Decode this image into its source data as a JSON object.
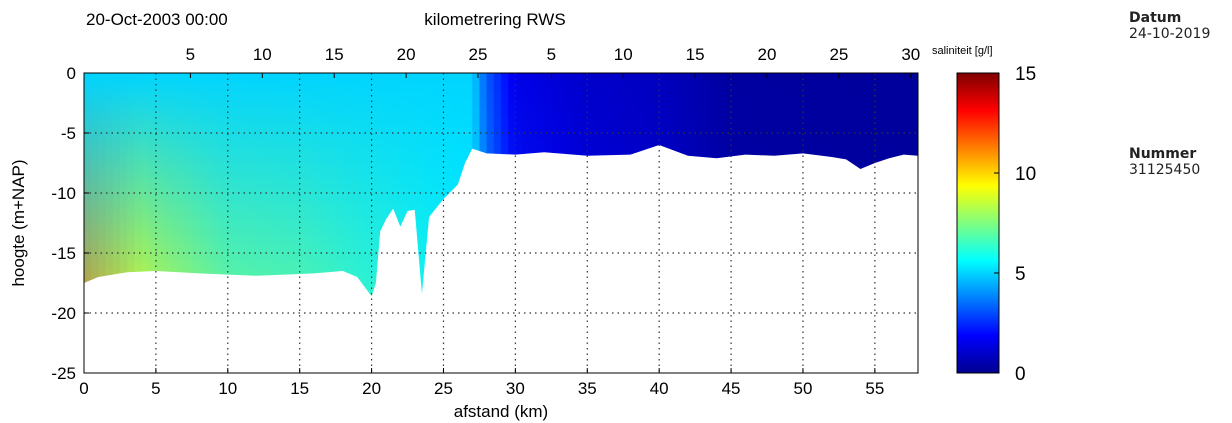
{
  "meta": {
    "datum_label": "Datum",
    "datum_value": "24-10-2019",
    "nummer_label": "Nummer",
    "nummer_value": "31125450"
  },
  "chart_data": {
    "type": "heatmap",
    "title_left": "20-Oct-2003 00:00",
    "title_center": "kilometrering RWS",
    "xlabel": "afstand (km)",
    "ylabel": "hoogte (m+NAP)",
    "colorbar_label": "saliniteit [g/l]",
    "xlim": [
      0,
      58
    ],
    "ylim": [
      -25,
      0
    ],
    "clim": [
      0,
      15
    ],
    "colormap": "jet",
    "grid": true,
    "x_ticks": [
      0,
      5,
      10,
      15,
      20,
      25,
      30,
      35,
      40,
      45,
      50,
      55
    ],
    "y_ticks": [
      0,
      -5,
      -10,
      -15,
      -20,
      -25
    ],
    "colorbar_ticks": [
      0,
      5,
      10,
      15
    ],
    "top_axis": {
      "segment1": {
        "start_afstand": 2.4,
        "ticks": [
          5,
          10,
          15,
          20,
          25
        ]
      },
      "segment2": {
        "start_afstand": 27.5,
        "ticks": [
          5,
          10,
          15,
          20,
          25,
          30
        ]
      }
    },
    "bottom_profile": {
      "x": [
        0,
        1,
        3,
        5,
        8,
        10,
        12,
        14,
        16,
        18,
        19,
        19.5,
        20,
        20.3,
        20.6,
        21,
        21.5,
        22,
        22.5,
        23,
        23.5,
        24,
        25,
        26,
        26.5,
        27,
        27.5,
        28,
        30,
        32,
        35,
        38,
        40,
        42,
        44,
        46,
        48,
        50,
        52,
        53,
        54,
        55,
        56,
        57,
        58
      ],
      "depth": [
        -17.5,
        -17,
        -16.6,
        -16.5,
        -16.7,
        -16.8,
        -16.9,
        -16.8,
        -16.7,
        -16.5,
        -17,
        -17.8,
        -18.6,
        -17.5,
        -13.2,
        -12.2,
        -11.3,
        -12.8,
        -11.5,
        -11.4,
        -18.4,
        -12,
        -10.5,
        -9.3,
        -7.5,
        -6.3,
        -6.5,
        -6.7,
        -6.8,
        -6.6,
        -6.9,
        -6.8,
        -6.0,
        -6.9,
        -7.1,
        -6.8,
        -6.9,
        -6.7,
        -7.0,
        -7.2,
        -8.0,
        -7.5,
        -7.1,
        -6.8,
        -6.9
      ]
    },
    "salinity_field": [
      {
        "x": 0,
        "surface": 5,
        "bottom": 11
      },
      {
        "x": 5,
        "surface": 5,
        "bottom": 9
      },
      {
        "x": 10,
        "surface": 5,
        "bottom": 7.5
      },
      {
        "x": 15,
        "surface": 5,
        "bottom": 7.2
      },
      {
        "x": 20,
        "surface": 5,
        "bottom": 6.5
      },
      {
        "x": 25,
        "surface": 5,
        "bottom": 5.8
      },
      {
        "x": 27,
        "surface": 5,
        "bottom": 5.5
      },
      {
        "x": 28,
        "surface": 3.2,
        "bottom": 4
      },
      {
        "x": 30,
        "surface": 1.5,
        "bottom": 2.5
      },
      {
        "x": 35,
        "surface": 1.0,
        "bottom": 1.5
      },
      {
        "x": 40,
        "surface": 0.8,
        "bottom": 1.2
      },
      {
        "x": 45,
        "surface": 0.3,
        "bottom": 0.4
      },
      {
        "x": 58,
        "surface": 0.2,
        "bottom": 0.3
      }
    ]
  }
}
